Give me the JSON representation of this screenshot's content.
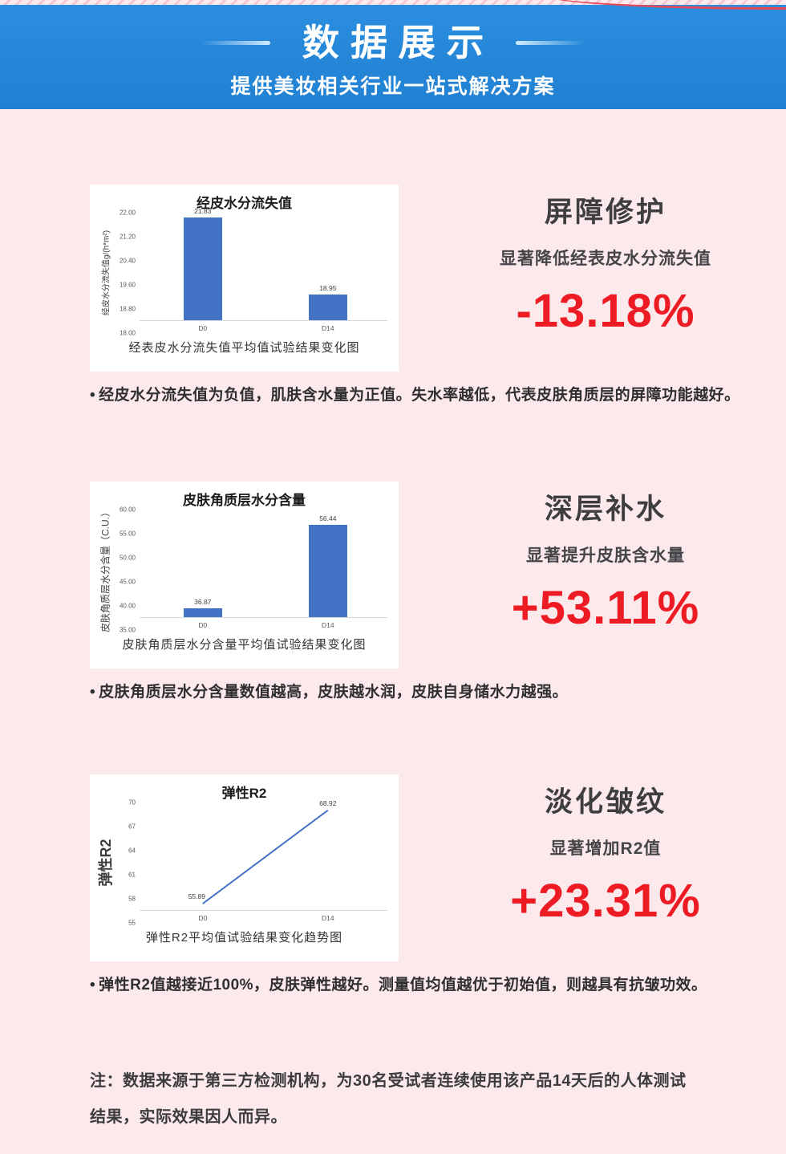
{
  "page": {
    "colors": {
      "header_blue": "#2b8ee0",
      "page_pink": "#fce9ec",
      "bar_blue": "#4472c4",
      "percent_red": "#ed1c24",
      "text_dark": "#3a3a3c"
    }
  },
  "header": {
    "title": "数据展示",
    "subtitle": "提供美妆相关行业一站式解决方案"
  },
  "sections": [
    {
      "panel": {
        "title": "屏障修护",
        "subtitle": "显著降低经表皮水分流失值",
        "percent": "-13.18%"
      },
      "bullet_dot": "•",
      "bullet": "经皮水分流失值为负值，肌肤含水量为正值。失水率越低，代表皮肤角质层的屏障功能越好。"
    },
    {
      "panel": {
        "title": "深层补水",
        "subtitle": "显著提升皮肤含水量",
        "percent": "+53.11%"
      },
      "bullet_dot": "•",
      "bullet": "皮肤角质层水分含量数值越高，皮肤越水润，皮肤自身储水力越强。"
    },
    {
      "panel": {
        "title": "淡化皱纹",
        "subtitle": "显著增加R2值",
        "percent": "+23.31%"
      },
      "bullet_dot": "•",
      "bullet": "弹性R2值越接近100%，皮肤弹性越好。测量值均值越优于初始值，则越具有抗皱功效。"
    }
  ],
  "note": "注：数据来源于第三方检测机构，为30名受试者连续使用该产品14天后的人体测试结果，实际效果因人而异。",
  "chart_data": [
    {
      "type": "bar",
      "title": "经皮水分流失值",
      "categories": [
        "D0",
        "D14"
      ],
      "values": [
        21.83,
        18.95
      ],
      "data_labels": [
        "21.83",
        "18.95"
      ],
      "xlabel": "经表皮水分流失值平均值试验结果变化图",
      "ylabel": "经皮水分流失值g/(h*m²)",
      "ylim": [
        18,
        22
      ],
      "yticks": [
        "22.00",
        "21.20",
        "20.40",
        "19.60",
        "18.80",
        "18.00"
      ],
      "grid": false,
      "legend": false,
      "bar_color": "#4472c4"
    },
    {
      "type": "bar",
      "title": "皮肤角质层水分含量",
      "categories": [
        "D0",
        "D14"
      ],
      "values": [
        36.87,
        56.44
      ],
      "data_labels": [
        "36.87",
        "56.44"
      ],
      "xlabel": "皮肤角质层水分含量平均值试验结果变化图",
      "ylabel": "皮肤角质层水分含量（C.U.）",
      "ylim": [
        35,
        60
      ],
      "yticks": [
        "60.00",
        "55.00",
        "50.00",
        "45.00",
        "40.00",
        "35.00"
      ],
      "grid": false,
      "legend": false,
      "bar_color": "#4472c4"
    },
    {
      "type": "line",
      "title": "弹性R2",
      "categories": [
        "D0",
        "D14"
      ],
      "values": [
        55.89,
        68.92
      ],
      "data_labels": [
        "55.89",
        "68.92"
      ],
      "xlabel": "弹性R2平均值试验结果变化趋势图",
      "ylabel": "弹性R2",
      "ylim": [
        55,
        70
      ],
      "yticks": [
        "70",
        "67",
        "64",
        "61",
        "58",
        "55"
      ],
      "grid": false,
      "legend": false,
      "line_color": "#4472c4"
    }
  ]
}
